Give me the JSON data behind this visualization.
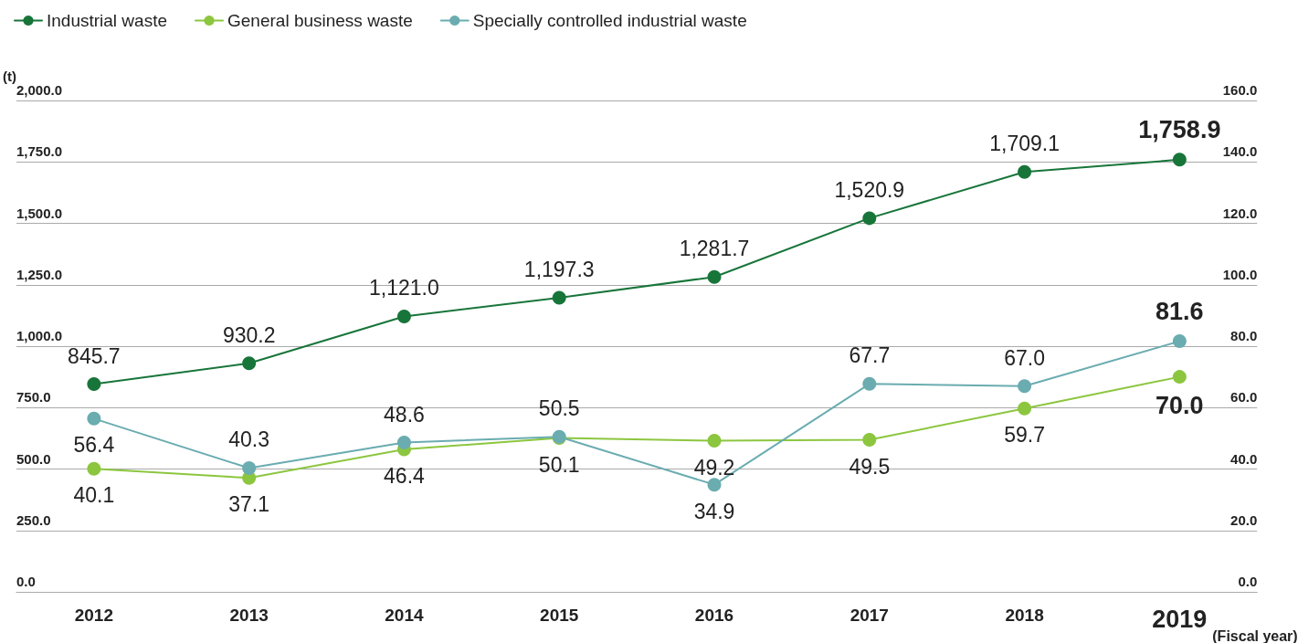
{
  "chart_data": {
    "type": "line",
    "categories": [
      "2012",
      "2013",
      "2014",
      "2015",
      "2016",
      "2017",
      "2018",
      "2019"
    ],
    "xlabel": "(Fiscal year)",
    "ylabel": "(t)",
    "series": [
      {
        "name": "Industrial waste",
        "color": "#18753a",
        "values": [
          845.7,
          930.2,
          1121.0,
          1197.3,
          1281.7,
          1520.9,
          1709.1,
          1758.9
        ],
        "value_labels": [
          "845.7",
          "930.2",
          "1,121.0",
          "1,197.3",
          "1,281.7",
          "1,520.9",
          "1,709.1",
          "1,758.9"
        ]
      },
      {
        "name": "General business waste",
        "color": "#8cc63f",
        "axis": "y2",
        "values": [
          40.1,
          37.1,
          46.4,
          50.1,
          49.2,
          49.5,
          59.7,
          70.0
        ],
        "value_labels": [
          "40.1",
          "37.1",
          "46.4",
          "50.1",
          "49.2",
          "49.5",
          "59.7",
          "70.0"
        ]
      },
      {
        "name": "Specially controlled industrial waste",
        "color": "#6aacb0",
        "axis": "y2",
        "values": [
          56.4,
          40.3,
          48.6,
          50.5,
          34.9,
          67.7,
          67.0,
          81.6
        ],
        "value_labels": [
          "56.4",
          "40.3",
          "48.6",
          "50.5",
          "34.9",
          "67.7",
          "67.0",
          "81.6"
        ]
      }
    ],
    "ylim": [
      0,
      2000
    ],
    "yticks": [
      {
        "value": 0,
        "label": "0.0"
      },
      {
        "value": 250,
        "label": "250.0"
      },
      {
        "value": 500,
        "label": "500.0"
      },
      {
        "value": 750,
        "label": "750.0"
      },
      {
        "value": 1000,
        "label": "1,000.0"
      },
      {
        "value": 1250,
        "label": "1,250.0"
      },
      {
        "value": 1500,
        "label": "1,500.0"
      },
      {
        "value": 1750,
        "label": "1,750.0"
      },
      {
        "value": 2000,
        "label": "2,000.0"
      }
    ],
    "y2lim": [
      0,
      160
    ],
    "y2ticks": [
      {
        "value": 0,
        "label": "0.0"
      },
      {
        "value": 20,
        "label": "20.0"
      },
      {
        "value": 40,
        "label": "40.0"
      },
      {
        "value": 60,
        "label": "60.0"
      },
      {
        "value": 80,
        "label": "80.0"
      },
      {
        "value": 100,
        "label": "100.0"
      },
      {
        "value": 120,
        "label": "120.0"
      },
      {
        "value": 140,
        "label": "140.0"
      },
      {
        "value": 160,
        "label": "160.0"
      }
    ],
    "grid": "y",
    "legend": "top left",
    "marker": "circle",
    "line_style": "solid"
  }
}
